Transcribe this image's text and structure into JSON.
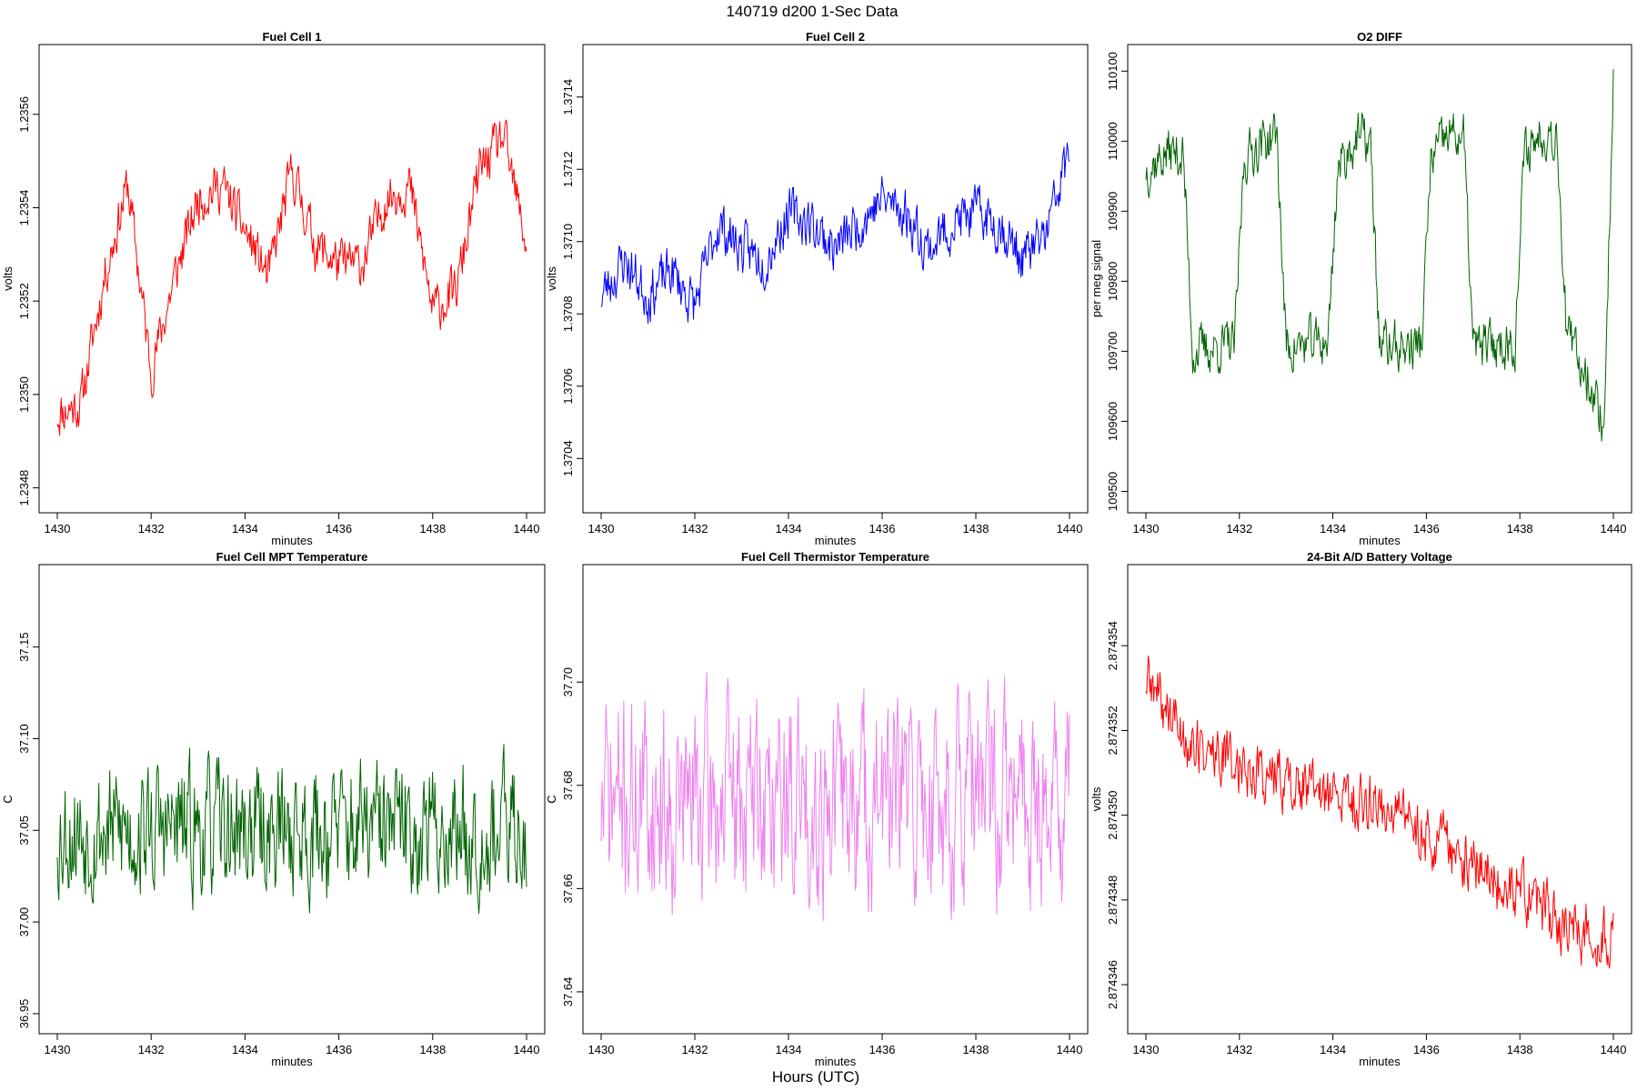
{
  "figure": {
    "title": "140719   d200   1-Sec Data",
    "xlabel": "Hours (UTC)"
  },
  "chart_data": [
    {
      "type": "line",
      "title": "Fuel Cell 1",
      "xlabel": "minutes",
      "ylabel": "volts",
      "color": "#ff0000",
      "xlim": [
        1430,
        1440
      ],
      "ylim": [
        1.23477,
        1.23573
      ],
      "xticks": [
        1430,
        1432,
        1434,
        1436,
        1438,
        1440
      ],
      "yticks": [
        1.2348,
        1.235,
        1.2352,
        1.2354,
        1.2356
      ],
      "ytick_labels": [
        "1.2348",
        "1.2350",
        "1.2352",
        "1.2354",
        "1.2356"
      ],
      "x": [
        1430.0,
        1430.5,
        1431.0,
        1431.5,
        1432.0,
        1432.5,
        1433.0,
        1433.5,
        1434.0,
        1434.5,
        1435.0,
        1435.5,
        1436.0,
        1436.5,
        1437.0,
        1437.5,
        1438.0,
        1438.5,
        1439.0,
        1439.5,
        1440.0
      ],
      "y": [
        1.23496,
        1.23498,
        1.23525,
        1.23545,
        1.23505,
        1.23525,
        1.23542,
        1.23545,
        1.23535,
        1.23525,
        1.23548,
        1.23532,
        1.23528,
        1.23528,
        1.23542,
        1.23545,
        1.23518,
        1.23522,
        1.23548,
        1.23555,
        1.23532
      ],
      "n_samples": 600,
      "noise": 8e-05,
      "seed": 11
    },
    {
      "type": "line",
      "title": "Fuel Cell 2",
      "xlabel": "minutes",
      "ylabel": "volts",
      "color": "#0000ff",
      "xlim": [
        1430,
        1440
      ],
      "ylim": [
        1.37028,
        1.37152
      ],
      "xticks": [
        1430,
        1432,
        1434,
        1436,
        1438,
        1440
      ],
      "yticks": [
        1.3704,
        1.3706,
        1.3708,
        1.371,
        1.3712,
        1.3714
      ],
      "ytick_labels": [
        "1.3704",
        "1.3706",
        "1.3708",
        "1.3710",
        "1.3712",
        "1.3714"
      ],
      "x": [
        1430.0,
        1430.5,
        1431.0,
        1431.5,
        1432.0,
        1432.5,
        1433.0,
        1433.5,
        1434.0,
        1434.5,
        1435.0,
        1435.5,
        1436.0,
        1436.5,
        1437.0,
        1437.5,
        1438.0,
        1438.5,
        1439.0,
        1439.5,
        1440.0
      ],
      "y": [
        1.37085,
        1.37095,
        1.37085,
        1.37092,
        1.37082,
        1.37105,
        1.37098,
        1.37095,
        1.37108,
        1.37105,
        1.37098,
        1.37105,
        1.37112,
        1.37108,
        1.37098,
        1.37105,
        1.37108,
        1.37105,
        1.37095,
        1.37102,
        1.37125
      ],
      "n_samples": 600,
      "noise": 0.00011,
      "seed": 23
    },
    {
      "type": "line",
      "title": "O2 DIFF",
      "xlabel": "minutes",
      "ylabel": "per meg signal",
      "color": "#006400",
      "xlim": [
        1430,
        1440
      ],
      "ylim": [
        109485,
        110125
      ],
      "xticks": [
        1430,
        1432,
        1434,
        1436,
        1438,
        1440
      ],
      "yticks": [
        109500,
        109600,
        109700,
        109800,
        109900,
        110000,
        110100
      ],
      "ytick_labels": [
        "109500",
        "109600",
        "109700",
        "109800",
        "109900",
        "110000",
        "110100"
      ],
      "x": [
        1430.0,
        1430.5,
        1430.8,
        1431.0,
        1431.5,
        1431.9,
        1432.1,
        1432.5,
        1432.8,
        1433.0,
        1433.5,
        1433.9,
        1434.1,
        1434.5,
        1434.8,
        1435.0,
        1435.5,
        1435.9,
        1436.1,
        1436.5,
        1436.8,
        1437.0,
        1437.5,
        1437.9,
        1438.1,
        1438.5,
        1438.8,
        1439.0,
        1439.5,
        1439.8,
        1440.0
      ],
      "y": [
        109960,
        109985,
        109980,
        109700,
        109705,
        109710,
        109975,
        110000,
        110010,
        109705,
        109710,
        109715,
        109960,
        110005,
        110000,
        109710,
        109705,
        109710,
        109975,
        110010,
        110005,
        109705,
        109710,
        109715,
        109985,
        110015,
        110010,
        109720,
        109660,
        109590,
        110090
      ],
      "n_samples": 600,
      "noise": 55,
      "seed": 37
    },
    {
      "type": "line",
      "title": "Fuel Cell MPT Temperature",
      "xlabel": "minutes",
      "ylabel": "C",
      "color": "#006400",
      "xlim": [
        1430,
        1440
      ],
      "ylim": [
        36.945,
        37.19
      ],
      "xticks": [
        1430,
        1432,
        1434,
        1436,
        1438,
        1440
      ],
      "yticks": [
        36.95,
        37.0,
        37.05,
        37.1,
        37.15
      ],
      "ytick_labels": [
        "36.95",
        "37.00",
        "37.05",
        "37.10",
        "37.15"
      ],
      "x": [
        1430.0,
        1432.0,
        1434.0,
        1436.0,
        1438.0,
        1440.0
      ],
      "y": [
        37.05,
        37.05,
        37.05,
        37.05,
        37.05,
        37.05
      ],
      "n_samples": 600,
      "noise": 0.055,
      "seed": 53
    },
    {
      "type": "line",
      "title": "Fuel Cell Thermistor Temperature",
      "xlabel": "minutes",
      "ylabel": "C",
      "color": "#ee82ee",
      "xlim": [
        1430,
        1440
      ],
      "ylim": [
        37.634,
        37.721
      ],
      "xticks": [
        1430,
        1432,
        1434,
        1436,
        1438,
        1440
      ],
      "yticks": [
        37.64,
        37.66,
        37.68,
        37.7
      ],
      "ytick_labels": [
        "37.64",
        "37.66",
        "37.68",
        "37.70"
      ],
      "x": [
        1430.0,
        1432.0,
        1434.0,
        1436.0,
        1438.0,
        1440.0
      ],
      "y": [
        37.677,
        37.677,
        37.677,
        37.677,
        37.677,
        37.677
      ],
      "n_samples": 600,
      "noise": 0.03,
      "seed": 71
    },
    {
      "type": "line",
      "title": "24-Bit A/D Battery Voltage",
      "xlabel": "minutes",
      "ylabel": "volts",
      "color": "#ff0000",
      "xlim": [
        1430,
        1440
      ],
      "ylim": [
        2.8743451,
        2.8743557
      ],
      "xticks": [
        1430,
        1432,
        1434,
        1436,
        1438,
        1440
      ],
      "yticks": [
        2.874346,
        2.874348,
        2.87435,
        2.874352,
        2.874354
      ],
      "ytick_labels": [
        "2.874346",
        "2.874348",
        "2.874350",
        "2.874352",
        "2.874354"
      ],
      "x": [
        1430.0,
        1431.0,
        1432.0,
        1433.0,
        1434.0,
        1435.0,
        1436.0,
        1437.0,
        1438.0,
        1439.0,
        1440.0
      ],
      "y": [
        2.8743532,
        2.8743516,
        2.8743512,
        2.8743508,
        2.8743504,
        2.8743503,
        2.8743496,
        2.8743488,
        2.8743482,
        2.8743473,
        2.8743472
      ],
      "n_samples": 600,
      "noise": 1.1e-06,
      "seed": 89
    }
  ]
}
